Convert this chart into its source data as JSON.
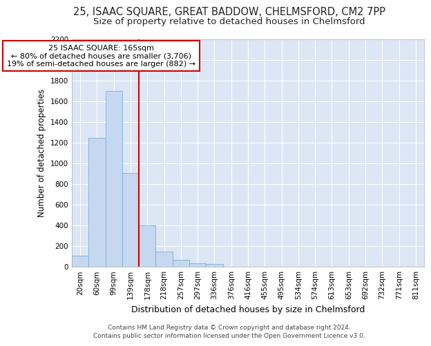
{
  "title": "25, ISAAC SQUARE, GREAT BADDOW, CHELMSFORD, CM2 7PP",
  "subtitle": "Size of property relative to detached houses in Chelmsford",
  "xlabel": "Distribution of detached houses by size in Chelmsford",
  "ylabel": "Number of detached properties",
  "categories": [
    "20sqm",
    "60sqm",
    "99sqm",
    "139sqm",
    "178sqm",
    "218sqm",
    "257sqm",
    "297sqm",
    "336sqm",
    "376sqm",
    "416sqm",
    "455sqm",
    "495sqm",
    "534sqm",
    "574sqm",
    "613sqm",
    "653sqm",
    "692sqm",
    "732sqm",
    "771sqm",
    "811sqm"
  ],
  "values": [
    110,
    1250,
    1700,
    910,
    400,
    150,
    65,
    35,
    25,
    0,
    0,
    0,
    0,
    0,
    0,
    0,
    0,
    0,
    0,
    0,
    0
  ],
  "bar_color": "#c5d8f0",
  "bar_edge_color": "#7aadd4",
  "annotation_line1": "25 ISAAC SQUARE: 165sqm",
  "annotation_line2": "← 80% of detached houses are smaller (3,706)",
  "annotation_line3": "19% of semi-detached houses are larger (882) →",
  "vline_color": "#cc0000",
  "vline_x_index": 3.5,
  "ylim": [
    0,
    2200
  ],
  "yticks": [
    0,
    200,
    400,
    600,
    800,
    1000,
    1200,
    1400,
    1600,
    1800,
    2000,
    2200
  ],
  "background_color": "#dce6f5",
  "plot_bg_color": "#dce6f5",
  "footer_line1": "Contains HM Land Registry data © Crown copyright and database right 2024.",
  "footer_line2": "Contains public sector information licensed under the Open Government Licence v3.0.",
  "title_fontsize": 10.5,
  "subtitle_fontsize": 9.5,
  "xlabel_fontsize": 9,
  "ylabel_fontsize": 8.5,
  "tick_fontsize": 7.5,
  "annotation_fontsize": 8,
  "footer_fontsize": 6.5
}
